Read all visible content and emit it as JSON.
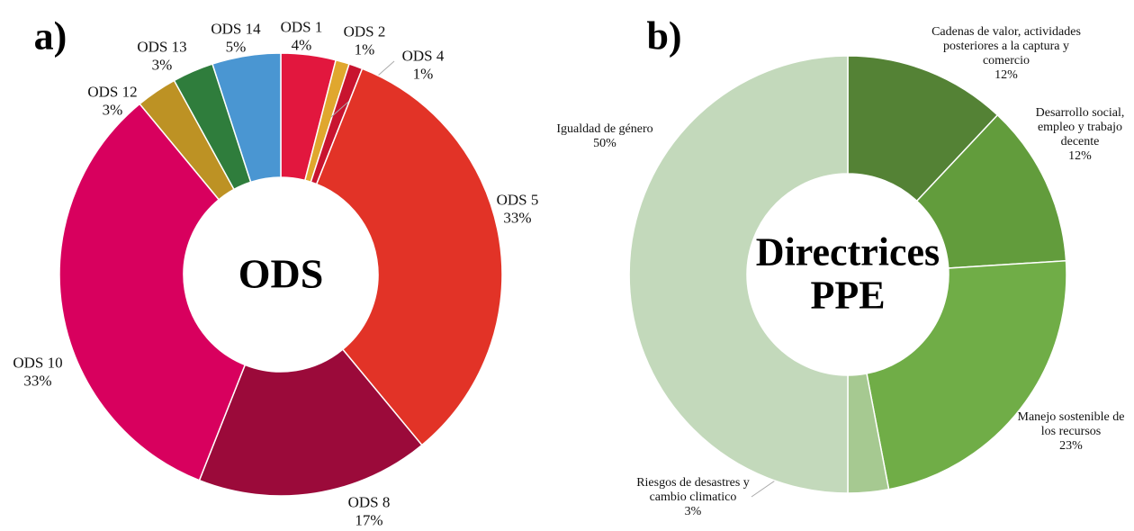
{
  "chart_data": [
    {
      "type": "pie",
      "panel": "a)",
      "center_label": "ODS",
      "categories": [
        "ODS 1",
        "ODS 2",
        "ODS 4",
        "ODS 5",
        "ODS 8",
        "ODS 10",
        "ODS 12",
        "ODS 13",
        "ODS 14"
      ],
      "values": [
        4,
        1,
        1,
        33,
        17,
        33,
        3,
        3,
        5
      ],
      "value_labels": [
        "4%",
        "1%",
        "1%",
        "33%",
        "17%",
        "33%",
        "3%",
        "3%",
        "5%"
      ],
      "colors": [
        "#e2173e",
        "#e0a72e",
        "#c8142f",
        "#e23327",
        "#9b0a3a",
        "#d8005e",
        "#bd9224",
        "#2f7d3c",
        "#4a96d2"
      ]
    },
    {
      "type": "pie",
      "panel": "b)",
      "center_label": "Directrices PPE",
      "categories": [
        "Cadenas de valor, actividades posteriores a la captura y comercio",
        "Desarrollo social, empleo y trabajo decente",
        "Manejo sostenible de los recursos",
        "Riesgos de desastres y cambio climatico",
        "Igualdad de género"
      ],
      "values": [
        12,
        12,
        23,
        3,
        50
      ],
      "value_labels": [
        "12%",
        "12%",
        "23%",
        "3%",
        "50%"
      ],
      "colors": [
        "#548235",
        "#629c3c",
        "#70ad47",
        "#a6c991",
        "#c3d9bb"
      ]
    }
  ]
}
